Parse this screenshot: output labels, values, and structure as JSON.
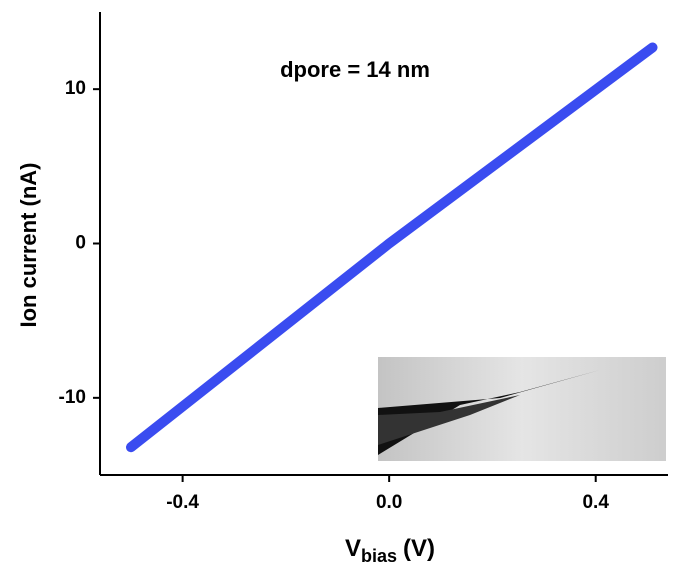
{
  "chart_data": {
    "type": "line",
    "annotation": "dpore = 14 nm",
    "y_label": "Ion current (nA)",
    "x_label": {
      "main": "V",
      "sub": "bias",
      "unit": "(V)"
    },
    "x": [
      -0.5,
      0,
      0.51
    ],
    "series": [
      {
        "color": "#3a4cf0",
        "values": [
          -13.2,
          0,
          12.7
        ]
      }
    ],
    "xlim": [
      -0.56,
      0.54
    ],
    "xticks": [
      {
        "value": -0.4,
        "label": "-0.4"
      },
      {
        "value": 0,
        "label": "0.0"
      },
      {
        "value": 0.4,
        "label": "0.4"
      }
    ],
    "ylim": [
      -15,
      15
    ],
    "yticks": [
      -10,
      0,
      10
    ]
  }
}
